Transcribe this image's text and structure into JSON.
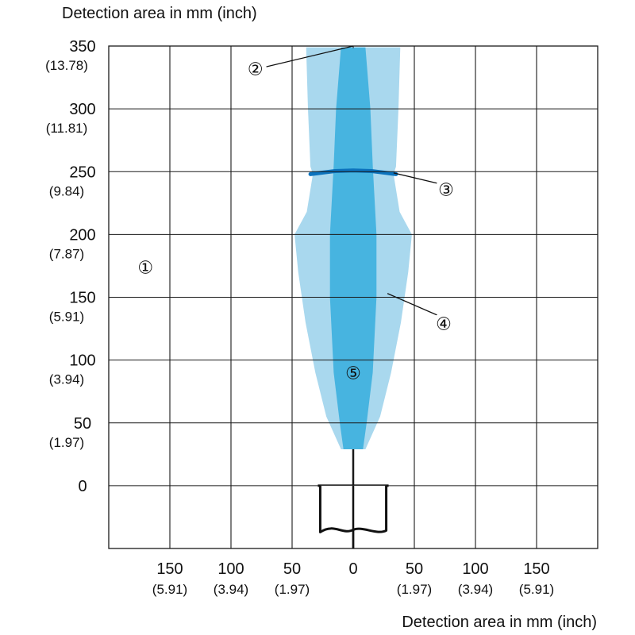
{
  "chart_data": {
    "type": "area",
    "title": "",
    "ylabel": "Detection area in mm (inch)",
    "xlabel": "Detection area in mm (inch)",
    "xlim": [
      -200,
      200
    ],
    "ylim": [
      -50,
      350
    ],
    "grid": true,
    "x_ticks": [
      {
        "value": -150,
        "mm": "150",
        "inch": "(5.91)"
      },
      {
        "value": -100,
        "mm": "100",
        "inch": "(3.94)"
      },
      {
        "value": -50,
        "mm": "50",
        "inch": "(1.97)"
      },
      {
        "value": 0,
        "mm": "0",
        "inch": ""
      },
      {
        "value": 50,
        "mm": "50",
        "inch": "(1.97)"
      },
      {
        "value": 100,
        "mm": "100",
        "inch": "(3.94)"
      },
      {
        "value": 150,
        "mm": "150",
        "inch": "(5.91)"
      }
    ],
    "y_ticks": [
      {
        "value": 350,
        "mm": "350",
        "inch": "(13.78)"
      },
      {
        "value": 300,
        "mm": "300",
        "inch": "(11.81)"
      },
      {
        "value": 250,
        "mm": "250",
        "inch": "(9.84)"
      },
      {
        "value": 200,
        "mm": "200",
        "inch": "(7.87)"
      },
      {
        "value": 150,
        "mm": "150",
        "inch": "(5.91)"
      },
      {
        "value": 100,
        "mm": "100",
        "inch": "(3.94)"
      },
      {
        "value": 50,
        "mm": "50",
        "inch": "(1.97)"
      },
      {
        "value": 0,
        "mm": "0",
        "inch": ""
      }
    ],
    "series": [
      {
        "color": "#a9d8ee",
        "outline": [
          [
            38.5,
            349
          ],
          [
            37,
            300
          ],
          [
            35,
            254
          ],
          [
            33,
            248
          ],
          [
            38,
            218
          ],
          [
            48,
            200
          ],
          [
            45,
            170
          ],
          [
            39,
            130
          ],
          [
            31,
            90
          ],
          [
            22,
            55
          ],
          [
            10,
            29
          ],
          [
            -10,
            29
          ],
          [
            -22,
            55
          ],
          [
            -31,
            90
          ],
          [
            -39,
            130
          ],
          [
            -45,
            170
          ],
          [
            -48,
            200
          ],
          [
            -38,
            218
          ],
          [
            -33,
            248
          ],
          [
            -35,
            254
          ],
          [
            -37,
            300
          ],
          [
            -38.5,
            349
          ]
        ]
      },
      {
        "color": "#47b4e0",
        "outline": [
          [
            10,
            349
          ],
          [
            14,
            300
          ],
          [
            16,
            255
          ],
          [
            19,
            200
          ],
          [
            19,
            150
          ],
          [
            16,
            90
          ],
          [
            11,
            50
          ],
          [
            8,
            29
          ],
          [
            -8,
            29
          ],
          [
            -11,
            50
          ],
          [
            -16,
            90
          ],
          [
            -19,
            150
          ],
          [
            -19,
            200
          ],
          [
            -16,
            255
          ],
          [
            -14,
            300
          ],
          [
            -10,
            349
          ]
        ]
      }
    ],
    "boundary_arc": {
      "color": "#0c73bd",
      "points": [
        [
          -35,
          248
        ],
        [
          -15,
          250.5
        ],
        [
          0,
          251
        ],
        [
          15,
          250.5
        ],
        [
          35,
          248
        ]
      ]
    },
    "sensor": {
      "x_range": [
        -27,
        27
      ],
      "y_top": 0,
      "y_bottom": -37,
      "axis_y_range": [
        0,
        -50
      ]
    },
    "callouts": [
      {
        "label": "①",
        "at": [
          -170,
          174
        ],
        "leader_to": null
      },
      {
        "label": "②",
        "at": [
          -80,
          332
        ],
        "leader_to": [
          0,
          350
        ]
      },
      {
        "label": "③",
        "at": [
          76,
          236
        ],
        "leader_to": [
          33,
          249
        ]
      },
      {
        "label": "④",
        "at": [
          74,
          129
        ],
        "leader_to": [
          28,
          153
        ]
      },
      {
        "label": "⑤",
        "at": [
          0,
          90
        ],
        "leader_to": null
      }
    ]
  }
}
